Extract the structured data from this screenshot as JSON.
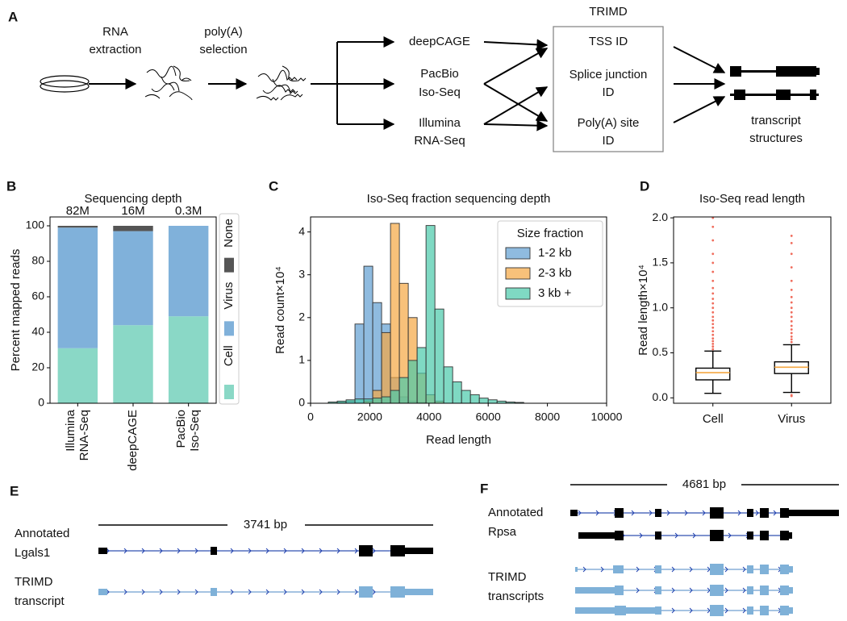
{
  "panel_labels": [
    "A",
    "B",
    "C",
    "D",
    "E",
    "F"
  ],
  "workflow": {
    "steps": [
      [
        "RNA",
        "extraction"
      ],
      [
        "poly(A)",
        "selection"
      ]
    ],
    "methods": [
      [
        "deepCAGE"
      ],
      [
        "PacBio",
        "Iso-Seq"
      ],
      [
        "Illumina",
        "RNA-Seq"
      ]
    ],
    "trimd": {
      "title": "TRIMD",
      "outputs": [
        [
          "TSS ID"
        ],
        [
          "Splice junction",
          "ID"
        ],
        [
          "Poly(A) site",
          "ID"
        ]
      ]
    },
    "result": [
      "transcript",
      "structures"
    ]
  },
  "chart_data": [
    {
      "type": "stacked_bar",
      "title": "Sequencing depth",
      "ylabel": "Percent mapped reads",
      "categories": [
        [
          "Illumina",
          "RNA-Seq"
        ],
        [
          "deepCAGE"
        ],
        [
          "PacBio",
          "Iso-Seq"
        ]
      ],
      "series": [
        {
          "name": "Cell",
          "color": "#8ad8c6",
          "values": [
            31,
            44,
            49
          ]
        },
        {
          "name": "Virus",
          "color": "#80b1da",
          "values": [
            68,
            53,
            51
          ]
        },
        {
          "name": "None",
          "color": "#555555",
          "values": [
            1,
            3,
            0
          ]
        }
      ],
      "annotations": [
        "82M",
        "16M",
        "0.3M"
      ],
      "ylim": [
        0,
        105
      ],
      "yticks": [
        0,
        20,
        40,
        60,
        80,
        100
      ],
      "legend": "right"
    },
    {
      "type": "histogram",
      "title": "Iso-Seq fraction sequencing depth",
      "xlabel": "Read length",
      "ylabel": "Read count×10⁴",
      "legend_title": "Size fraction",
      "legend": "upper right",
      "bins": [
        600,
        900,
        1200,
        1500,
        1800,
        2100,
        2400,
        2700,
        3000,
        3300,
        3600,
        3900,
        4200,
        4500,
        4800,
        5100,
        5400,
        5700,
        6000,
        6300,
        6600,
        6900,
        7200
      ],
      "series": [
        {
          "name": "1-2 kb",
          "color": "#5f9ed1",
          "values": [
            0,
            0.02,
            0.05,
            1.85,
            3.2,
            2.35,
            1.85,
            0.6,
            0.15,
            0.05,
            0.02,
            0,
            0,
            0,
            0,
            0,
            0,
            0,
            0,
            0,
            0,
            0
          ]
        },
        {
          "name": "2-3 kb",
          "color": "#f5a742",
          "values": [
            0,
            0,
            0,
            0,
            0.05,
            0.3,
            1.65,
            4.2,
            2.8,
            2.0,
            0.7,
            0.2,
            0.05,
            0,
            0,
            0,
            0,
            0,
            0,
            0,
            0,
            0
          ]
        },
        {
          "name": "3 kb +",
          "color": "#49c9a9",
          "values": [
            0.03,
            0.05,
            0.08,
            0.1,
            0.1,
            0.12,
            0.15,
            0.3,
            0.6,
            1.0,
            1.3,
            4.15,
            2.2,
            0.85,
            0.5,
            0.3,
            0.2,
            0.12,
            0.08,
            0.05,
            0.03,
            0.02
          ]
        }
      ],
      "xlim": [
        0,
        10000
      ],
      "xticks": [
        0,
        2000,
        4000,
        6000,
        8000,
        10000
      ],
      "ylim": [
        0,
        4.35
      ],
      "yticks": [
        0,
        1,
        2,
        3,
        4
      ]
    },
    {
      "type": "box",
      "title": "Iso-Seq read length",
      "ylabel": "Read length×10⁴",
      "categories": [
        "Cell",
        "Virus"
      ],
      "boxes": [
        {
          "whislo": 0.05,
          "q1": 0.2,
          "med": 0.28,
          "q3": 0.33,
          "whishi": 0.52,
          "fliers": [
            0.54,
            0.57,
            0.6,
            0.63,
            0.66,
            0.7,
            0.74,
            0.78,
            0.82,
            0.86,
            0.9,
            0.95,
            1.0,
            1.05,
            1.1,
            1.16,
            1.22,
            1.3,
            1.4,
            1.5,
            1.6,
            1.75,
            1.9,
            2.0
          ]
        },
        {
          "whislo": 0.06,
          "q1": 0.27,
          "med": 0.34,
          "q3": 0.4,
          "whishi": 0.59,
          "fliers": [
            0.02,
            0.03,
            0.62,
            0.65,
            0.68,
            0.72,
            0.76,
            0.8,
            0.85,
            0.9,
            0.95,
            1.0,
            1.06,
            1.12,
            1.2,
            1.3,
            1.45,
            1.6,
            1.72,
            1.8
          ]
        }
      ],
      "ylim": [
        -0.06,
        2.01
      ],
      "yticks": [
        {
          "value": 0,
          "label": "0.0"
        },
        {
          "value": 0.5,
          "label": "0.5"
        },
        {
          "value": 1,
          "label": "1.0"
        },
        {
          "value": 1.5,
          "label": "1.5"
        },
        {
          "value": 2,
          "label": "2.0"
        }
      ],
      "median_color": "#f5a742",
      "flier_color": "#f06c5c"
    }
  ],
  "gene_E": {
    "scale": "3741 bp",
    "labels": [
      [
        "Annotated",
        "Lgals1"
      ],
      [
        "TRIMD",
        "transcript"
      ]
    ]
  },
  "gene_F": {
    "scale": "4681 bp",
    "labels": [
      [
        "Annotated",
        "Rpsa"
      ],
      [
        "TRIMD",
        "transcripts"
      ]
    ]
  }
}
